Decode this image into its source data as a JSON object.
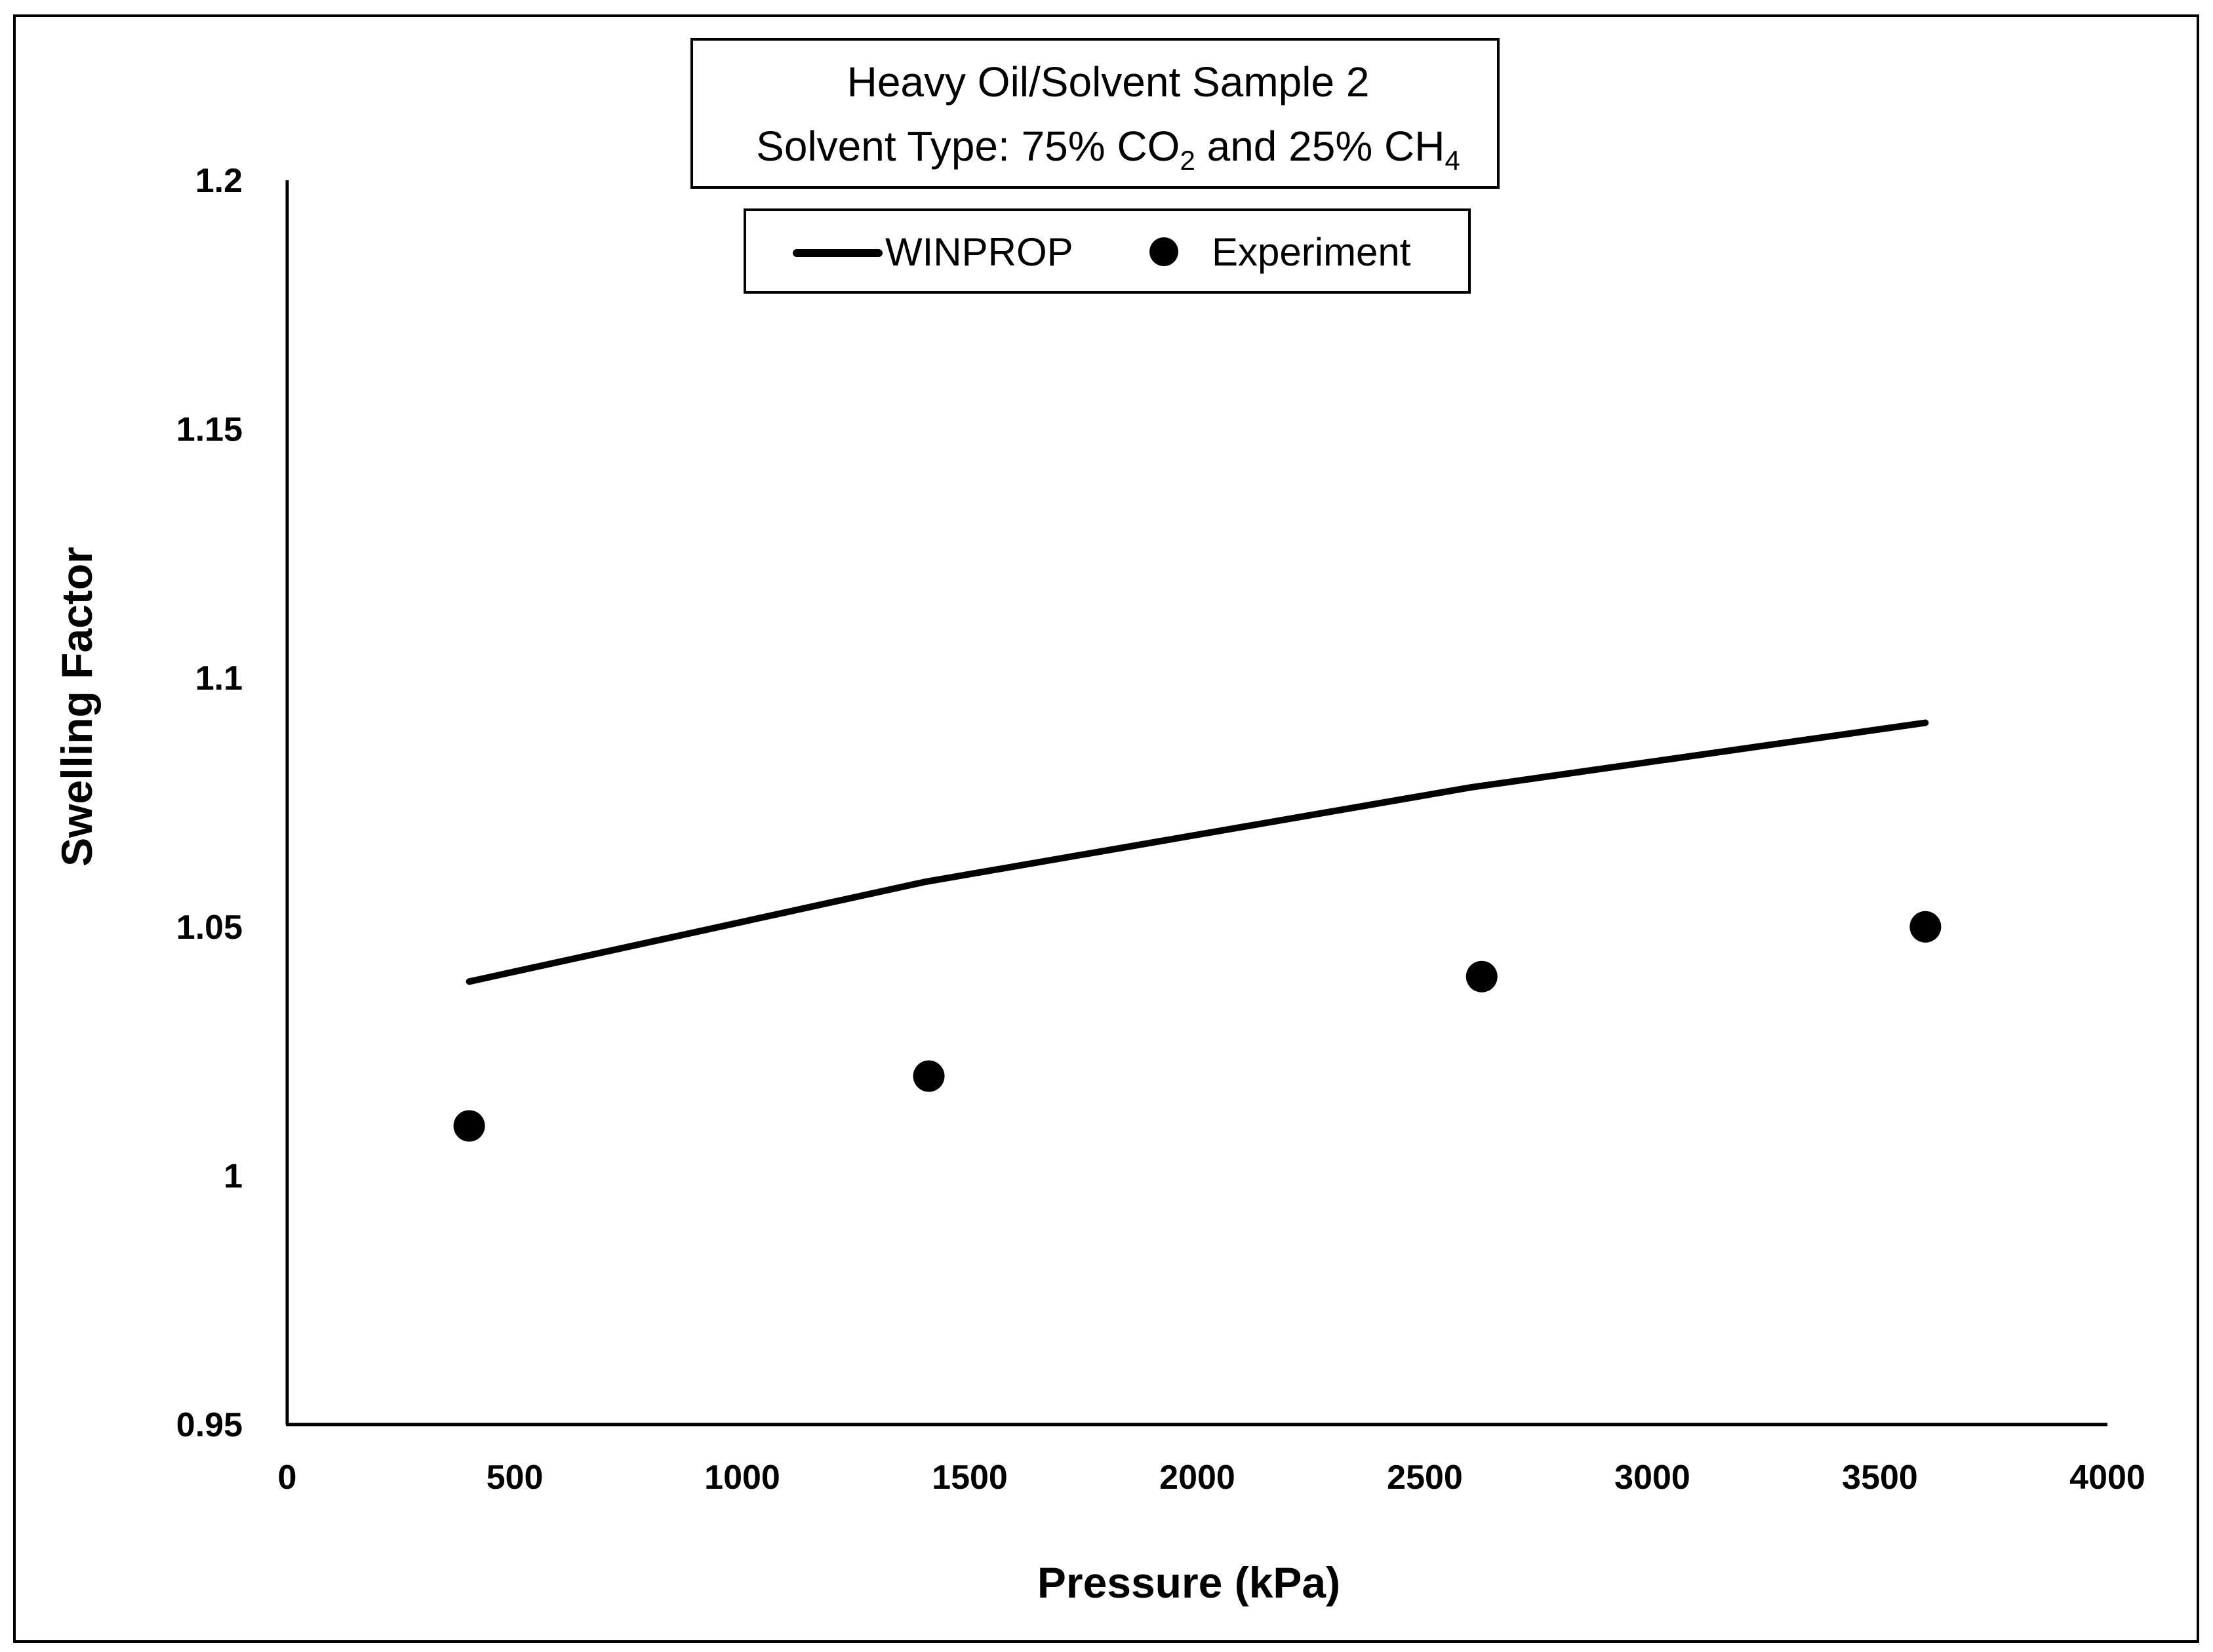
{
  "chart_data": {
    "type": "line+scatter",
    "title": {
      "line1": "Heavy Oil/Solvent Sample 2",
      "line2_prefix": "Solvent Type: 75% CO",
      "line2_sub1": "2",
      "line2_mid": " and 25% CH",
      "line2_sub2": "4"
    },
    "xlabel": "Pressure (kPa)",
    "ylabel": "Swelling Factor",
    "xlim": [
      0,
      4000
    ],
    "ylim": [
      0.95,
      1.2
    ],
    "xticks": [
      0,
      500,
      1000,
      1500,
      2000,
      2500,
      3000,
      3500,
      4000
    ],
    "xtick_labels": [
      "0",
      "500",
      "1000",
      "1500",
      "2000",
      "2500",
      "3000",
      "3500",
      "4000"
    ],
    "yticks": [
      0.95,
      1.0,
      1.05,
      1.1,
      1.15,
      1.2
    ],
    "ytick_labels": [
      "0.95",
      "1",
      "1.05",
      "1.1",
      "1.15",
      "1.2"
    ],
    "legend": {
      "placement": "top-center",
      "entries": [
        "WINPROP",
        "Experiment"
      ]
    },
    "series": [
      {
        "name": "WINPROP",
        "kind": "line",
        "x": [
          400,
          1400,
          2600,
          3600
        ],
        "y": [
          1.039,
          1.059,
          1.078,
          1.091
        ]
      },
      {
        "name": "Experiment",
        "kind": "scatter",
        "x": [
          400,
          1410,
          2625,
          3600
        ],
        "y": [
          1.01,
          1.02,
          1.04,
          1.05
        ]
      }
    ],
    "colors": {
      "line": "#000000",
      "marker": "#000000",
      "frame": "#000000",
      "background": "#ffffff"
    }
  }
}
